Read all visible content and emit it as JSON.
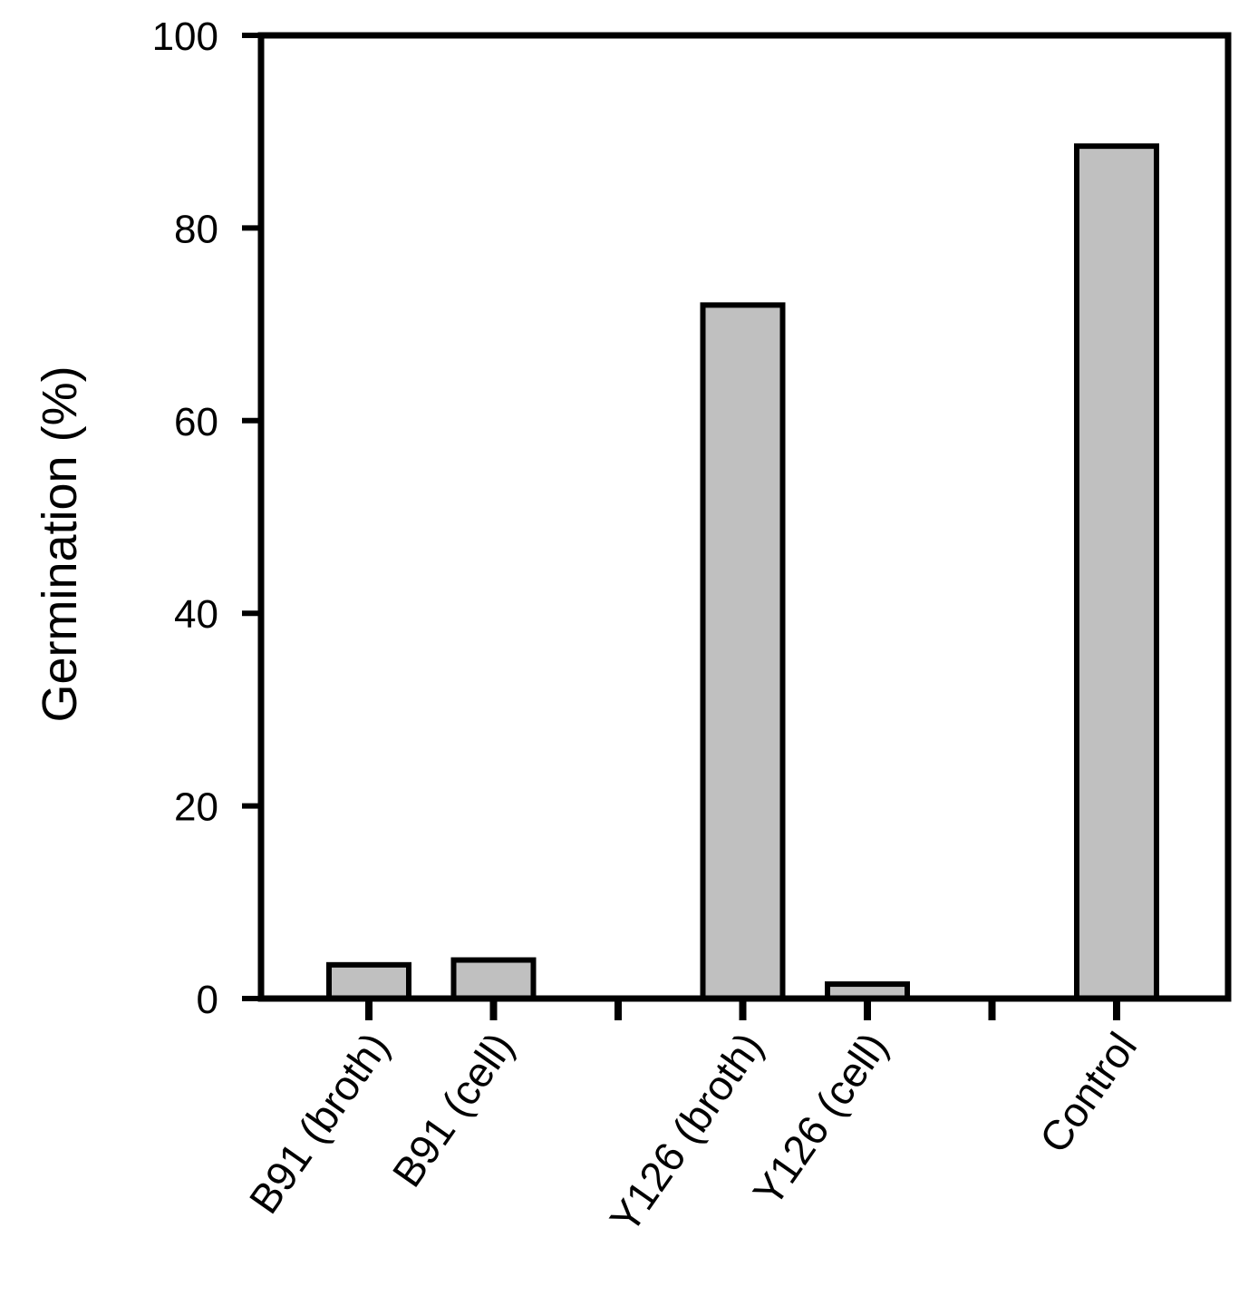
{
  "chart_data": {
    "type": "bar",
    "title": "",
    "xlabel": "",
    "ylabel": "Germination (%)",
    "ylim": [
      0,
      100
    ],
    "yticks": [
      "0",
      "20",
      "40",
      "60",
      "80",
      "100"
    ],
    "categories": [
      "B91 (broth)",
      "B91 (cell)",
      "",
      "Y126 (broth)",
      "Y126 (cell)",
      "",
      "Control"
    ],
    "values": [
      3.5,
      4.0,
      null,
      72.0,
      1.5,
      null,
      88.5
    ],
    "grid": false,
    "legend": "none",
    "colors": {
      "bar_fill": "#c0c0c0",
      "bar_stroke": "#000000",
      "axis": "#000000",
      "background": "#ffffff"
    }
  }
}
